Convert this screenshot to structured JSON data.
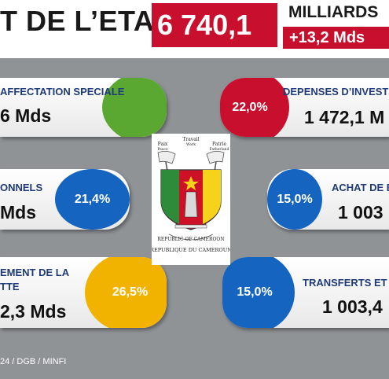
{
  "header": {
    "title": "T DE L’ETAT",
    "total": "6 740,1",
    "unit": "MILLIARDS",
    "delta": "+13,2 Mds"
  },
  "cards": {
    "affectation": {
      "label": "AFFECTATION SPECIALE",
      "value": "6 Mds",
      "color": "#5aa832"
    },
    "personnels": {
      "label": "ONNELS",
      "value": "Mds",
      "percent": "21,4%",
      "percent_value": 21.4,
      "color": "#1565c0"
    },
    "fonctionnement": {
      "label_line1": "EMENT DE LA",
      "label_line2": "TTE",
      "value": "2,3 Mds",
      "percent": "26,5%",
      "percent_value": 26.5,
      "color": "#f2b300"
    },
    "investissement": {
      "label": "DEPENSES D’INVEST",
      "value": "1 472,1 M",
      "percent": "22,0%",
      "percent_value": 22.0,
      "color": "#c8102e"
    },
    "achat": {
      "label": "ACHAT DE B",
      "value": "1 003",
      "percent": "15,0%",
      "percent_value": 15.0,
      "color": "#1565c0"
    },
    "transferts": {
      "label": "TRANSFERTS ET",
      "value": "1 003,4",
      "percent": "15,0%",
      "percent_value": 15.0,
      "color": "#1565c0"
    }
  },
  "emblem": {
    "motto_left": "Paix",
    "motto_top": "Travail",
    "motto_right": "Patrie",
    "motto_en_left": "Peace",
    "motto_en_top": "Work",
    "motto_en_right": "Fatherland",
    "text_en": "REPUBLIC OF CAMEROON",
    "text_fr": "REPUBLIQUE DU CAMEROUN"
  },
  "footer": {
    "source": "24 / DGB / MINFI"
  }
}
